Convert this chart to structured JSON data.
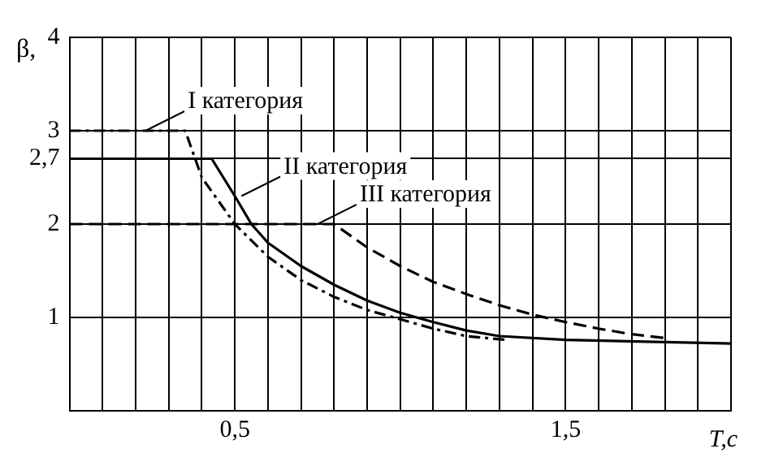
{
  "chart_data": {
    "type": "line",
    "xlabel": "T,c",
    "ylabel": "β,",
    "xlim": [
      0,
      2.0
    ],
    "xticks": [
      {
        "value": 0.1,
        "label": null
      },
      {
        "value": 0.2,
        "label": null
      },
      {
        "value": 0.3,
        "label": null
      },
      {
        "value": 0.4,
        "label": null
      },
      {
        "value": 0.5,
        "label": "0,5"
      },
      {
        "value": 0.6,
        "label": null
      },
      {
        "value": 0.7,
        "label": null
      },
      {
        "value": 0.8,
        "label": null
      },
      {
        "value": 0.9,
        "label": null
      },
      {
        "value": 1.0,
        "label": null
      },
      {
        "value": 1.1,
        "label": null
      },
      {
        "value": 1.2,
        "label": null
      },
      {
        "value": 1.3,
        "label": null
      },
      {
        "value": 1.4,
        "label": null
      },
      {
        "value": 1.5,
        "label": "1,5"
      },
      {
        "value": 1.6,
        "label": null
      },
      {
        "value": 1.7,
        "label": null
      },
      {
        "value": 1.8,
        "label": null
      },
      {
        "value": 1.9,
        "label": null
      },
      {
        "value": 2.0,
        "label": null
      }
    ],
    "ylim": [
      0,
      4
    ],
    "yticks": [
      1,
      2,
      {
        "value": 2.7,
        "label": "2,7"
      },
      3,
      4
    ],
    "grid": true,
    "legend": false,
    "marker": "none",
    "series": [
      {
        "color": "#000000",
        "line_style": "dotted",
        "x": [
          0,
          0.35,
          0.4,
          0.5,
          0.6,
          0.7,
          0.8,
          0.9,
          1.0,
          1.1,
          1.2,
          1.32
        ],
        "values": [
          3,
          3,
          2.5,
          2.0,
          1.65,
          1.4,
          1.22,
          1.08,
          0.98,
          0.88,
          0.8,
          0.76
        ]
      },
      {
        "color": "#000000",
        "line_style": "solid",
        "x": [
          0,
          0.43,
          0.5,
          0.55,
          0.6,
          0.7,
          0.8,
          0.9,
          1.0,
          1.1,
          1.2,
          1.3,
          1.5,
          2.0
        ],
        "values": [
          2.7,
          2.7,
          2.3,
          2.0,
          1.8,
          1.55,
          1.35,
          1.18,
          1.05,
          0.95,
          0.86,
          0.8,
          0.76,
          0.72
        ]
      },
      {
        "color": "#000000",
        "line_style": "dashed",
        "x": [
          0,
          0.8,
          0.9,
          1.0,
          1.1,
          1.2,
          1.3,
          1.4,
          1.5,
          1.6,
          1.7,
          1.8
        ],
        "values": [
          2,
          2,
          1.75,
          1.55,
          1.38,
          1.25,
          1.13,
          1.03,
          0.95,
          0.88,
          0.82,
          0.78
        ]
      }
    ],
    "annotations": [
      {
        "text": "I категория",
        "x": 0.23,
        "y": 3
      },
      {
        "text": "II категория",
        "x": 0.52,
        "y": 2.3
      },
      {
        "text": "III категория",
        "x": 0.75,
        "y": 2
      }
    ]
  }
}
